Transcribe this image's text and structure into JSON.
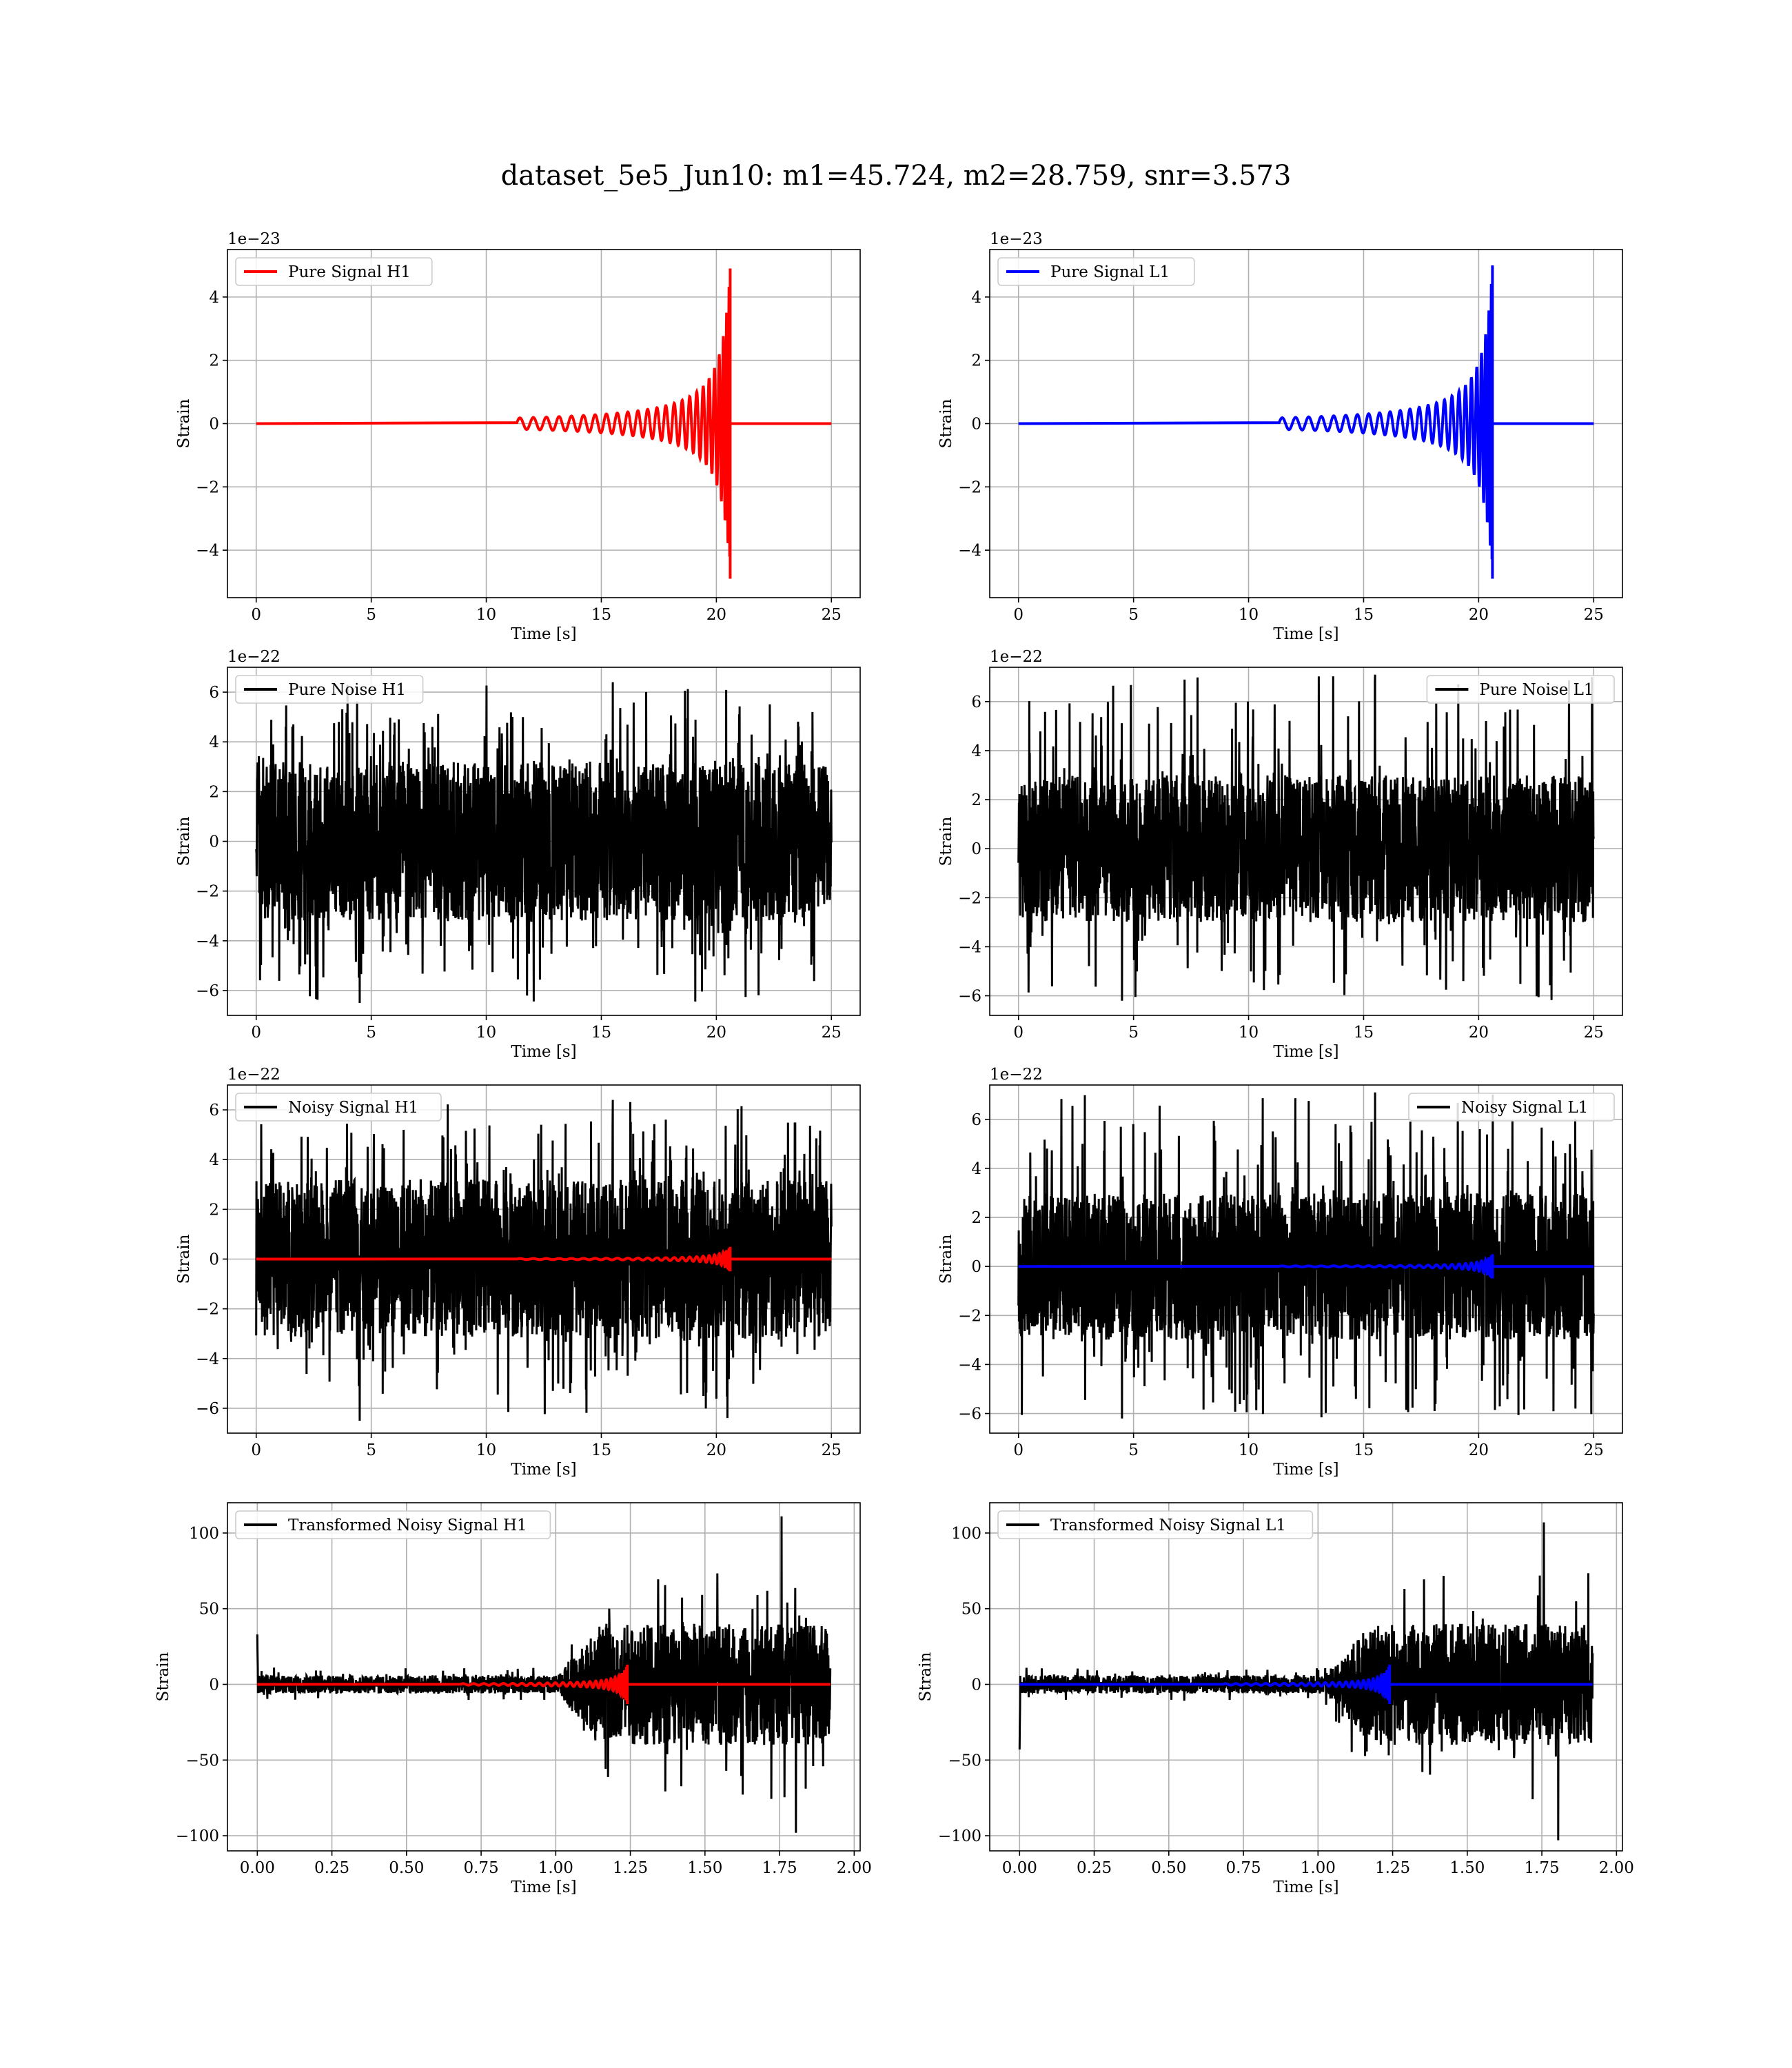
{
  "figure": {
    "suptitle": "dataset_5e5_Jun10: m1=45.724, m2=28.759, snr=3.573"
  },
  "colors": {
    "h1_signal": "#ff0000",
    "l1_signal": "#0000ff",
    "noise": "#000000",
    "grid": "#b0b0b0",
    "background": "#ffffff"
  },
  "chart_data": [
    {
      "type": "line",
      "panel": "pure-signal-h1",
      "xlabel": "Time [s]",
      "ylabel": "Strain",
      "offset_text": "1e−23",
      "xlim": [
        -1.25,
        26.25
      ],
      "ylim": [
        -5.5,
        5.5
      ],
      "xticks": [
        0,
        5,
        10,
        15,
        20,
        25
      ],
      "yticks": [
        -4,
        -2,
        0,
        2,
        4
      ],
      "grid": true,
      "legend_position": "upper left",
      "series": [
        {
          "name": "Pure Signal H1",
          "color": "#ff0000",
          "kind": "chirp",
          "t_start": 0,
          "t_end": 25,
          "t_merger": 20.6,
          "peak": 4.9,
          "peak_low": -4.9
        }
      ]
    },
    {
      "type": "line",
      "panel": "pure-signal-l1",
      "xlabel": "Time [s]",
      "ylabel": "Strain",
      "offset_text": "1e−23",
      "xlim": [
        -1.25,
        26.25
      ],
      "ylim": [
        -5.5,
        5.5
      ],
      "xticks": [
        0,
        5,
        10,
        15,
        20,
        25
      ],
      "yticks": [
        -4,
        -2,
        0,
        2,
        4
      ],
      "grid": true,
      "legend_position": "upper left",
      "series": [
        {
          "name": "Pure Signal L1",
          "color": "#0000ff",
          "kind": "chirp",
          "t_start": 0,
          "t_end": 25,
          "t_merger": 20.6,
          "peak": 5.0,
          "peak_low": -4.9
        }
      ]
    },
    {
      "type": "line",
      "panel": "pure-noise-h1",
      "xlabel": "Time [s]",
      "ylabel": "Strain",
      "offset_text": "1e−22",
      "xlim": [
        -1.25,
        26.25
      ],
      "ylim": [
        -7.0,
        7.0
      ],
      "xticks": [
        0,
        5,
        10,
        15,
        20,
        25
      ],
      "yticks": [
        -6,
        -4,
        -2,
        0,
        2,
        4,
        6
      ],
      "grid": true,
      "legend_position": "upper left",
      "series": [
        {
          "name": "Pure Noise H1",
          "color": "#000000",
          "kind": "noise",
          "t_start": 0,
          "t_end": 25,
          "core": 3.2,
          "max": 6.4,
          "min": -6.5
        }
      ]
    },
    {
      "type": "line",
      "panel": "pure-noise-l1",
      "xlabel": "Time [s]",
      "ylabel": "Strain",
      "offset_text": "1e−22",
      "xlim": [
        -1.25,
        26.25
      ],
      "ylim": [
        -6.8,
        7.4
      ],
      "xticks": [
        0,
        5,
        10,
        15,
        20,
        25
      ],
      "yticks": [
        -6,
        -4,
        -2,
        0,
        2,
        4,
        6
      ],
      "grid": true,
      "legend_position": "upper right",
      "series": [
        {
          "name": "Pure Noise L1",
          "color": "#000000",
          "kind": "noise",
          "t_start": 0,
          "t_end": 25,
          "core": 3.0,
          "max": 7.1,
          "min": -6.2
        }
      ]
    },
    {
      "type": "line",
      "panel": "noisy-signal-h1",
      "xlabel": "Time [s]",
      "ylabel": "Strain",
      "offset_text": "1e−22",
      "xlim": [
        -1.25,
        26.25
      ],
      "ylim": [
        -7.0,
        7.0
      ],
      "xticks": [
        0,
        5,
        10,
        15,
        20,
        25
      ],
      "yticks": [
        -6,
        -4,
        -2,
        0,
        2,
        4,
        6
      ],
      "grid": true,
      "legend_position": "upper left",
      "series": [
        {
          "name": "Noisy Signal H1",
          "color": "#000000",
          "kind": "noise",
          "t_start": 0,
          "t_end": 25,
          "core": 3.2,
          "max": 6.4,
          "min": -6.5
        },
        {
          "name": "",
          "color": "#ff0000",
          "kind": "chirp",
          "t_start": 0,
          "t_end": 25,
          "t_merger": 20.6,
          "peak": 0.49,
          "peak_low": -0.49
        }
      ]
    },
    {
      "type": "line",
      "panel": "noisy-signal-l1",
      "xlabel": "Time [s]",
      "ylabel": "Strain",
      "offset_text": "1e−22",
      "xlim": [
        -1.25,
        26.25
      ],
      "ylim": [
        -6.8,
        7.4
      ],
      "xticks": [
        0,
        5,
        10,
        15,
        20,
        25
      ],
      "yticks": [
        -6,
        -4,
        -2,
        0,
        2,
        4,
        6
      ],
      "grid": true,
      "legend_position": "upper right",
      "series": [
        {
          "name": "Noisy Signal L1",
          "color": "#000000",
          "kind": "noise",
          "t_start": 0,
          "t_end": 25,
          "core": 3.0,
          "max": 7.1,
          "min": -6.2
        },
        {
          "name": "",
          "color": "#0000ff",
          "kind": "chirp",
          "t_start": 0,
          "t_end": 25,
          "t_merger": 20.6,
          "peak": 0.5,
          "peak_low": -0.49
        }
      ]
    },
    {
      "type": "line",
      "panel": "transformed-noisy-signal-h1",
      "xlabel": "Time [s]",
      "ylabel": "Strain",
      "offset_text": "",
      "xlim": [
        -0.1,
        2.02
      ],
      "ylim": [
        -110,
        120
      ],
      "xticks": [
        0.0,
        0.25,
        0.5,
        0.75,
        1.0,
        1.25,
        1.5,
        1.75,
        2.0
      ],
      "xtick_labels": [
        "0.00",
        "0.25",
        "0.50",
        "0.75",
        "1.00",
        "1.25",
        "1.50",
        "1.75",
        "2.00"
      ],
      "yticks": [
        -100,
        -50,
        0,
        50,
        100
      ],
      "grid": true,
      "legend_position": "upper left",
      "series": [
        {
          "name": "Transformed Noisy Signal H1",
          "color": "#000000",
          "kind": "whitened",
          "t_start": 0,
          "t_end": 1.92,
          "t_rise": 1.08,
          "core_low": 6,
          "core_high": 40,
          "max": 111,
          "min": -98,
          "start_spike": 33
        },
        {
          "name": "",
          "color": "#ff0000",
          "kind": "chirp",
          "t_start": 0,
          "t_end": 1.92,
          "t_merger": 1.24,
          "peak": 13,
          "peak_low": -13
        }
      ]
    },
    {
      "type": "line",
      "panel": "transformed-noisy-signal-l1",
      "xlabel": "Time [s]",
      "ylabel": "Strain",
      "offset_text": "",
      "xlim": [
        -0.1,
        2.02
      ],
      "ylim": [
        -110,
        120
      ],
      "xticks": [
        0.0,
        0.25,
        0.5,
        0.75,
        1.0,
        1.25,
        1.5,
        1.75,
        2.0
      ],
      "xtick_labels": [
        "0.00",
        "0.25",
        "0.50",
        "0.75",
        "1.00",
        "1.25",
        "1.50",
        "1.75",
        "2.00"
      ],
      "yticks": [
        -100,
        -50,
        0,
        50,
        100
      ],
      "grid": true,
      "legend_position": "upper left",
      "series": [
        {
          "name": "Transformed Noisy Signal L1",
          "color": "#000000",
          "kind": "whitened",
          "t_start": 0,
          "t_end": 1.92,
          "t_rise": 1.1,
          "core_low": 6,
          "core_high": 40,
          "max": 107,
          "min": -103,
          "start_spike": -43
        },
        {
          "name": "",
          "color": "#0000ff",
          "kind": "chirp",
          "t_start": 0,
          "t_end": 1.92,
          "t_merger": 1.24,
          "peak": 13,
          "peak_low": -13
        }
      ]
    }
  ]
}
